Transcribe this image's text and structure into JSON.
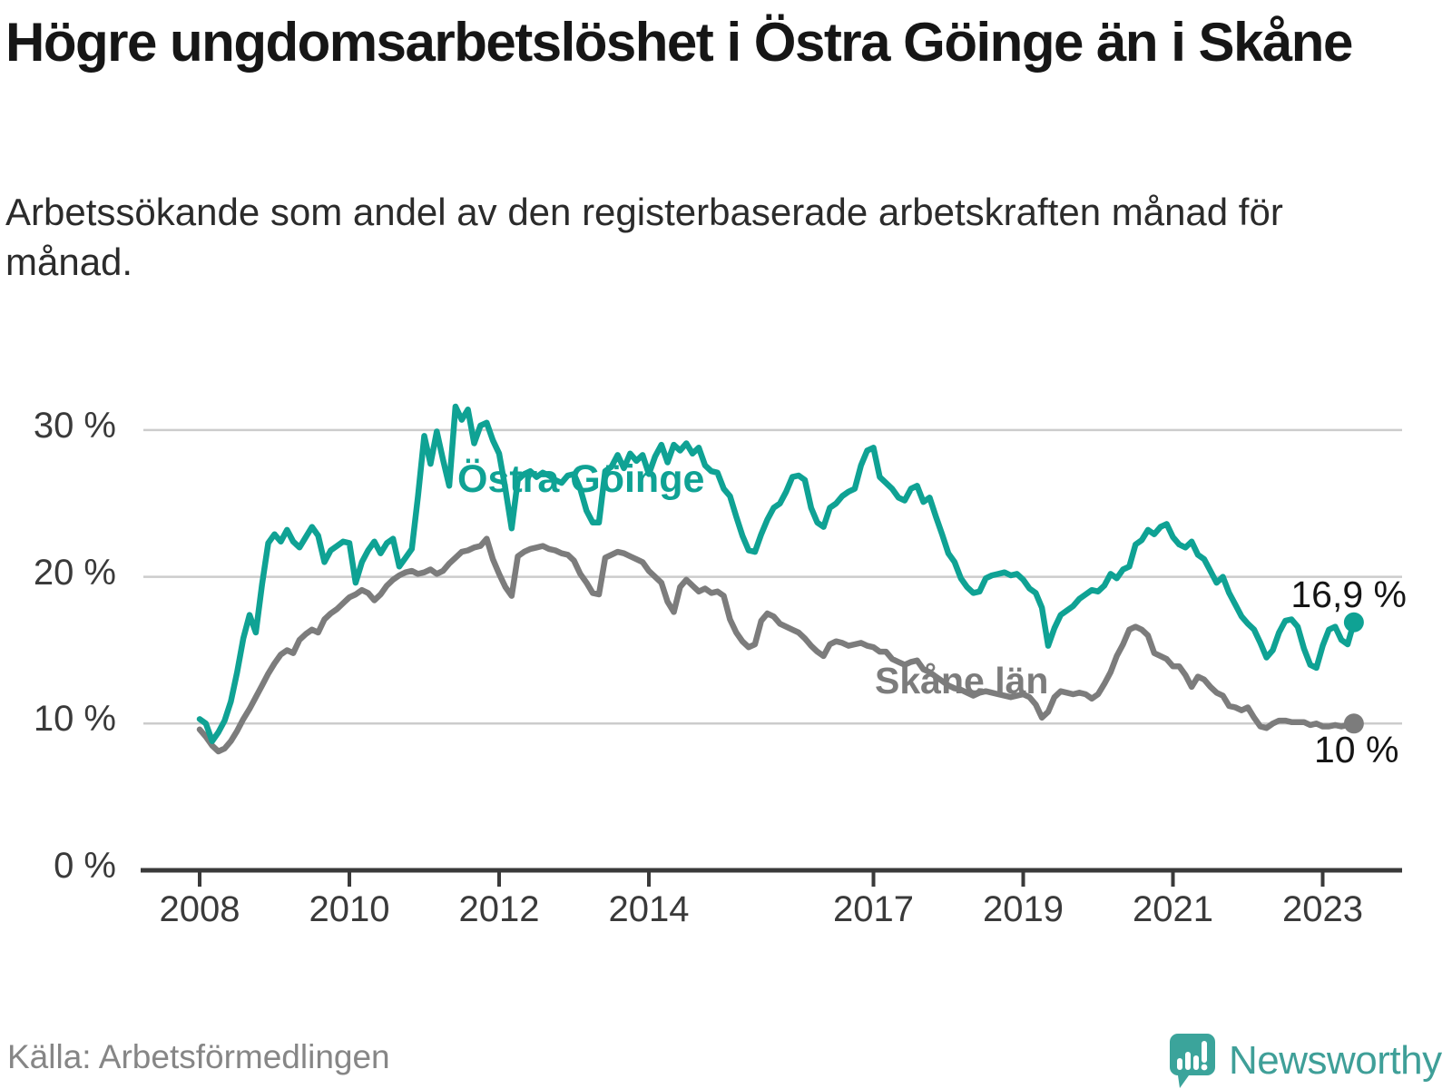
{
  "title": "Högre ungdomsarbetslöshet i Östra Göinge än i Skåne",
  "subtitle": "Arbetssökande som andel av den registerbaserade arbetskraften månad för månad.",
  "source": "Källa: Arbetsförmedlingen",
  "branding": {
    "logo_text": "Newsworthy",
    "logo_icon": "speech-bubble-bar-chart",
    "brand_color": "#3f9f98"
  },
  "chart_data": {
    "type": "line",
    "unit": "%",
    "x_start": "2008-01",
    "x_end": "2023-06",
    "frequency": "monthly",
    "grid": "horizontal",
    "ylim": [
      0,
      33
    ],
    "y_ticks": [
      0,
      10,
      20,
      30
    ],
    "y_tick_labels": [
      "0 %",
      "10 %",
      "20 %",
      "30 %"
    ],
    "x_tick_years": [
      2008,
      2010,
      2012,
      2014,
      2017,
      2019,
      2021,
      2023
    ],
    "x_tick_labels": [
      "2008",
      "2010",
      "2012",
      "2014",
      "2017",
      "2019",
      "2021",
      "2023"
    ],
    "axis_color": "#3a3a3a",
    "gridline_color": "#cccccc",
    "series": [
      {
        "name": "Östra Göinge",
        "color": "#0fa294",
        "end_label": "16,9 %",
        "end_value": 16.9,
        "values": [
          10.3,
          10.0,
          8.8,
          9.4,
          10.2,
          11.5,
          13.5,
          15.8,
          17.4,
          16.2,
          19.5,
          22.3,
          22.9,
          22.4,
          23.2,
          22.4,
          22.0,
          22.7,
          23.4,
          22.8,
          21.0,
          21.8,
          22.1,
          22.4,
          22.3,
          19.6,
          21.0,
          21.8,
          22.4,
          21.6,
          22.3,
          22.6,
          20.7,
          21.3,
          21.9,
          25.5,
          29.6,
          27.7,
          29.9,
          28.0,
          26.2,
          31.6,
          30.7,
          31.4,
          29.1,
          30.3,
          30.5,
          29.3,
          28.4,
          26.0,
          23.3,
          26.6,
          27.0,
          27.2,
          26.8,
          27.1,
          26.9,
          26.6,
          26.4,
          26.9,
          27.0,
          26.0,
          24.5,
          23.7,
          23.7,
          27.2,
          27.5,
          28.3,
          27.4,
          28.4,
          27.9,
          28.3,
          27.0,
          28.2,
          29.0,
          27.8,
          29.0,
          28.6,
          29.1,
          28.4,
          28.8,
          27.6,
          27.2,
          27.1,
          26.0,
          25.5,
          24.1,
          22.8,
          21.8,
          21.7,
          22.9,
          23.9,
          24.7,
          25.0,
          25.8,
          26.8,
          26.9,
          26.6,
          24.7,
          23.7,
          23.4,
          24.7,
          25.0,
          25.5,
          25.8,
          26.0,
          27.6,
          28.6,
          28.8,
          26.8,
          26.4,
          26.0,
          25.4,
          25.2,
          26.0,
          26.2,
          25.1,
          25.4,
          24.1,
          22.9,
          21.6,
          21.0,
          19.9,
          19.3,
          18.9,
          19.0,
          19.9,
          20.1,
          20.2,
          20.3,
          20.1,
          20.2,
          19.8,
          19.2,
          18.9,
          17.9,
          15.3,
          16.5,
          17.4,
          17.7,
          18.0,
          18.5,
          18.8,
          19.1,
          19.0,
          19.4,
          20.2,
          19.9,
          20.5,
          20.7,
          22.2,
          22.5,
          23.2,
          22.9,
          23.4,
          23.6,
          22.7,
          22.2,
          22.0,
          22.4,
          21.5,
          21.2,
          20.4,
          19.6,
          20.0,
          18.9,
          18.1,
          17.3,
          16.8,
          16.4,
          15.5,
          14.5,
          15.0,
          16.2,
          17.0,
          17.1,
          16.6,
          15.1,
          14.0,
          13.8,
          15.3,
          16.4,
          16.6,
          15.7,
          15.4,
          16.9
        ]
      },
      {
        "name": "Skåne län",
        "color": "#7c7c7c",
        "end_label": "10 %",
        "end_value": 10.0,
        "values": [
          9.6,
          9.1,
          8.5,
          8.1,
          8.3,
          8.8,
          9.5,
          10.3,
          11.0,
          11.8,
          12.6,
          13.4,
          14.1,
          14.7,
          15.0,
          14.8,
          15.7,
          16.1,
          16.4,
          16.2,
          17.1,
          17.5,
          17.8,
          18.2,
          18.6,
          18.8,
          19.1,
          18.9,
          18.4,
          18.8,
          19.4,
          19.8,
          20.1,
          20.3,
          20.4,
          20.2,
          20.3,
          20.5,
          20.2,
          20.4,
          20.9,
          21.3,
          21.7,
          21.8,
          22.0,
          22.1,
          22.6,
          21.2,
          20.2,
          19.3,
          18.7,
          21.4,
          21.7,
          21.9,
          22.0,
          22.1,
          21.9,
          21.8,
          21.6,
          21.5,
          21.1,
          20.2,
          19.6,
          18.9,
          18.8,
          21.3,
          21.5,
          21.7,
          21.6,
          21.4,
          21.2,
          21.0,
          20.4,
          20.0,
          19.6,
          18.3,
          17.6,
          19.3,
          19.8,
          19.4,
          19.0,
          19.2,
          18.9,
          19.0,
          18.7,
          17.1,
          16.2,
          15.6,
          15.2,
          15.4,
          17.0,
          17.5,
          17.3,
          16.8,
          16.6,
          16.4,
          16.2,
          15.8,
          15.3,
          14.9,
          14.6,
          15.4,
          15.6,
          15.5,
          15.3,
          15.4,
          15.5,
          15.3,
          15.2,
          14.9,
          14.9,
          14.4,
          14.2,
          14.0,
          14.2,
          14.3,
          13.7,
          13.5,
          13.2,
          12.9,
          12.6,
          12.4,
          12.3,
          12.1,
          11.9,
          12.1,
          12.2,
          12.1,
          12.0,
          11.9,
          11.8,
          11.9,
          12.0,
          11.8,
          11.3,
          10.4,
          10.8,
          11.8,
          12.2,
          12.1,
          12.0,
          12.1,
          12.0,
          11.7,
          12.0,
          12.7,
          13.5,
          14.6,
          15.4,
          16.4,
          16.6,
          16.4,
          16.0,
          14.8,
          14.6,
          14.4,
          13.9,
          13.9,
          13.3,
          12.5,
          13.2,
          13.0,
          12.5,
          12.1,
          11.9,
          11.2,
          11.1,
          10.9,
          11.1,
          10.4,
          9.8,
          9.7,
          10.0,
          10.2,
          10.2,
          10.1,
          10.1,
          10.1,
          9.9,
          10.0,
          9.8,
          9.8,
          9.9,
          9.8,
          9.9,
          10.0
        ]
      }
    ]
  }
}
